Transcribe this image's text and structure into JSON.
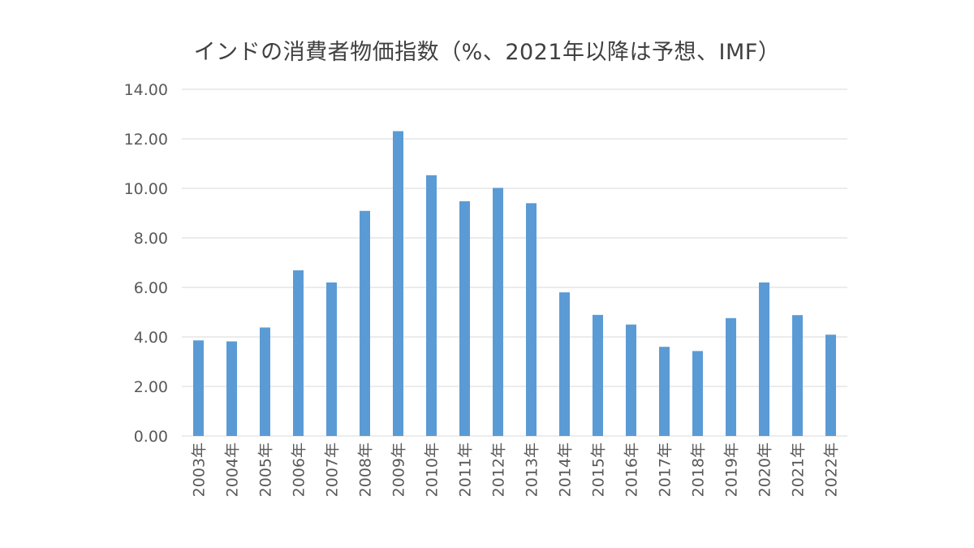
{
  "chart_data": {
    "type": "bar",
    "title": "インドの消費者物価指数（%、2021年以降は予想、IMF）",
    "xlabel": "",
    "ylabel": "",
    "ylim": [
      0,
      14
    ],
    "y_ticks": [
      "0.00",
      "2.00",
      "4.00",
      "6.00",
      "8.00",
      "10.00",
      "12.00",
      "14.00"
    ],
    "grid": true,
    "legend": "none",
    "bar_color": "#5b9bd5",
    "categories": [
      "2003年",
      "2004年",
      "2005年",
      "2006年",
      "2007年",
      "2008年",
      "2009年",
      "2010年",
      "2011年",
      "2012年",
      "2013年",
      "2014年",
      "2015年",
      "2016年",
      "2017年",
      "2018年",
      "2019年",
      "2020年",
      "2021年",
      "2022年"
    ],
    "values": [
      3.86,
      3.82,
      4.38,
      6.69,
      6.2,
      9.09,
      12.31,
      10.53,
      9.48,
      10.02,
      9.4,
      5.8,
      4.89,
      4.5,
      3.6,
      3.43,
      4.76,
      6.2,
      4.88,
      4.09
    ]
  }
}
